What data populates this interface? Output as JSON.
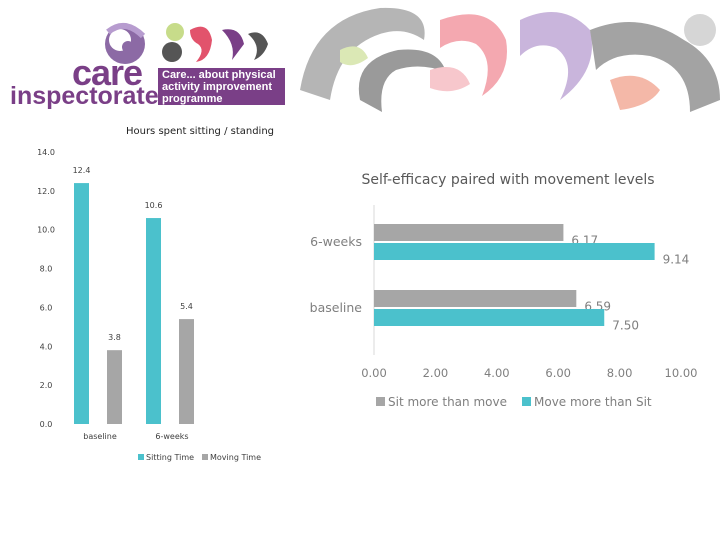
{
  "header": {
    "logo_care": "care",
    "logo_inspectorate": "inspectorate",
    "programme_lines": [
      "Care... about physical",
      "activity improvement",
      "programme"
    ],
    "colors": {
      "purple": "#7a3f87",
      "grey": "#8c8c8c",
      "pink": "#f4a0a8",
      "green": "#c7dc8a",
      "lilac": "#c7b3d8"
    }
  },
  "chart_data": [
    {
      "type": "bar",
      "title": "Hours spent sitting / standing",
      "categories": [
        "baseline",
        "6-weeks"
      ],
      "series": [
        {
          "name": "Sitting Time",
          "values": [
            12.4,
            10.6
          ],
          "labels": [
            "12.4",
            "10.6"
          ],
          "color": "#4bc1cc"
        },
        {
          "name": "Moving Time",
          "values": [
            3.8,
            5.4
          ],
          "labels": [
            "3.8",
            "5.4"
          ],
          "color": "#a6a6a6"
        }
      ],
      "ylim": [
        0,
        14
      ],
      "yticks": [
        "0.0",
        "2.0",
        "4.0",
        "6.0",
        "8.0",
        "10.0",
        "12.0",
        "14.0"
      ],
      "legend": "bottom"
    },
    {
      "type": "bar",
      "orientation": "horizontal",
      "title": "Self-efficacy paired with movement levels",
      "categories": [
        "baseline",
        "6-weeks"
      ],
      "series": [
        {
          "name": "Sit more than move",
          "values": [
            6.59,
            6.17
          ],
          "labels": [
            "6.59",
            "6.17"
          ],
          "color": "#a6a6a6"
        },
        {
          "name": "Move more than Sit",
          "values": [
            7.5,
            9.14
          ],
          "labels": [
            "7.50",
            "9.14"
          ],
          "color": "#4bc1cc"
        }
      ],
      "xlim": [
        0,
        10
      ],
      "xticks": [
        "0.00",
        "2.00",
        "4.00",
        "6.00",
        "8.00",
        "10.00"
      ],
      "legend": "bottom"
    }
  ]
}
